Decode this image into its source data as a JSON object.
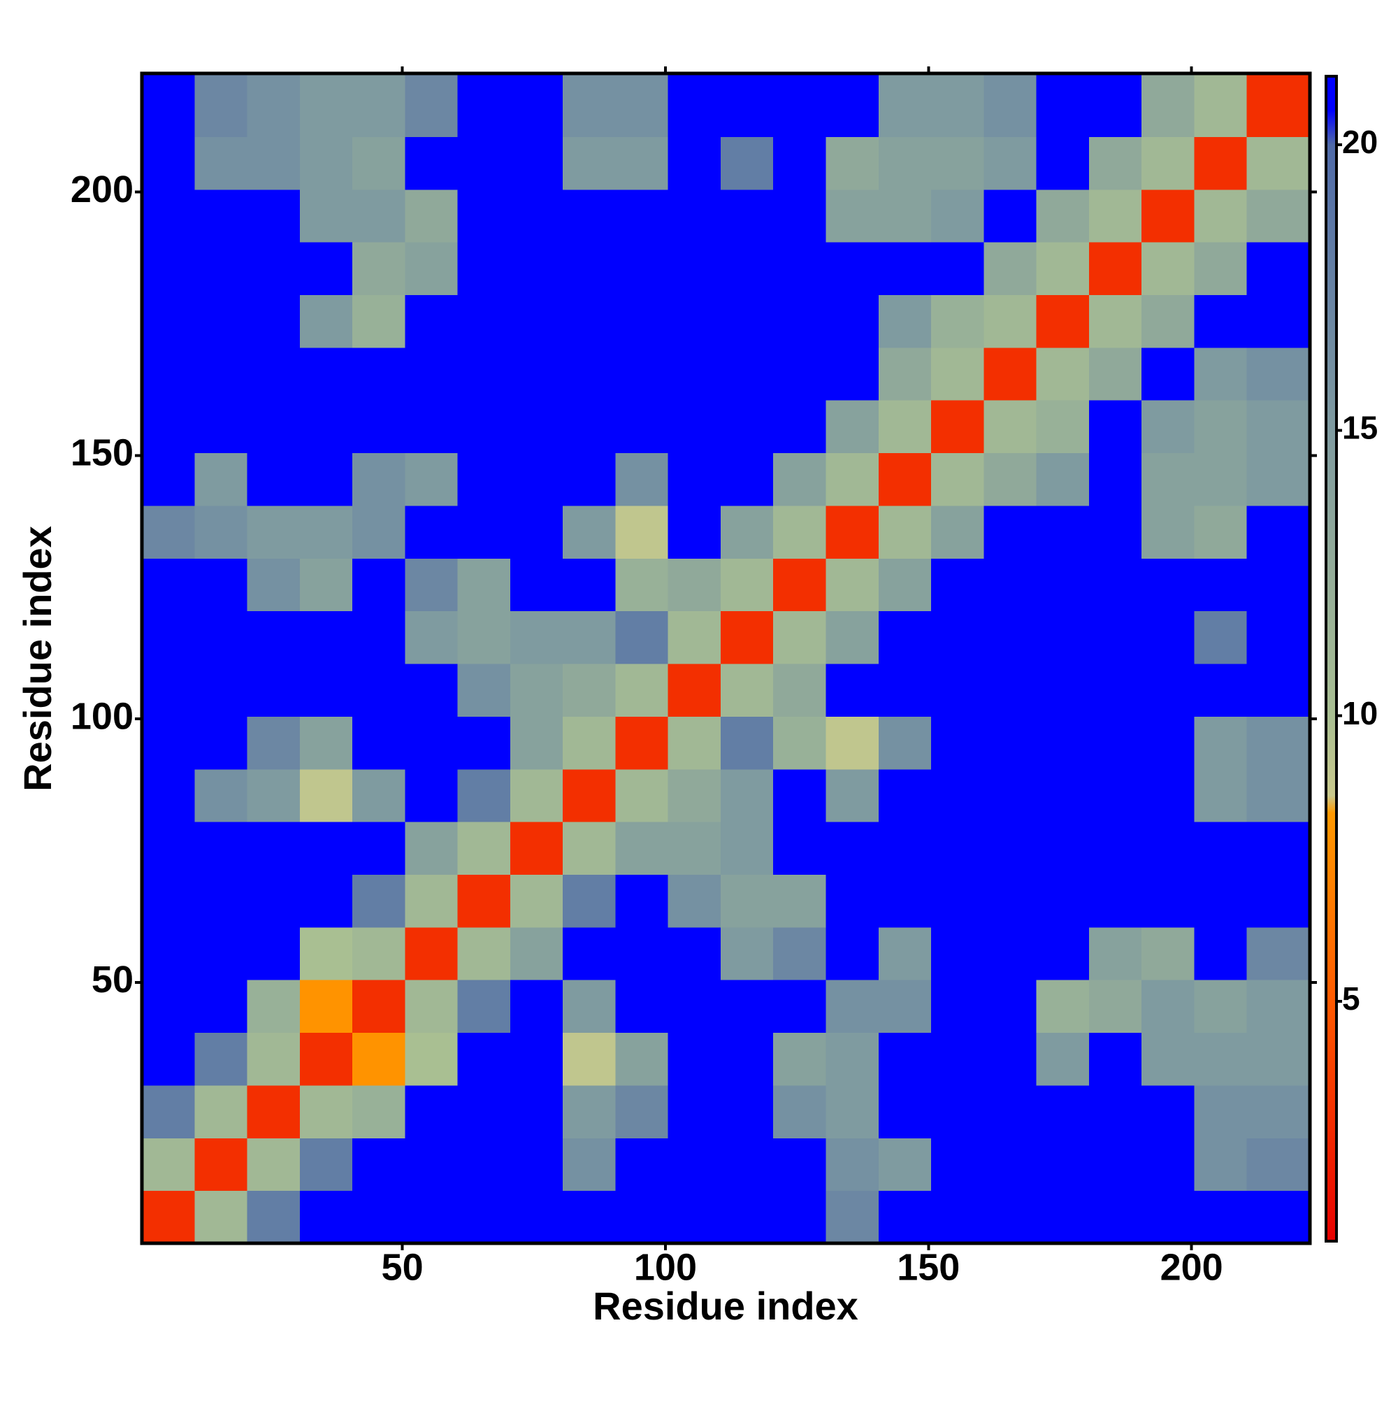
{
  "chart_data": {
    "type": "heatmap",
    "xlabel": "Residue index",
    "ylabel": "Residue index",
    "x_bins": [
      0.5,
      10.5,
      20.5,
      30.5,
      40.5,
      50.5,
      60.5,
      70.5,
      80.5,
      90.5,
      100.5,
      110.5,
      120.5,
      130.5,
      140.5,
      150.5,
      160.5,
      170.5,
      180.5,
      190.5,
      200.5,
      210.5,
      222.5
    ],
    "y_bins": [
      0.5,
      10.5,
      20.5,
      30.5,
      40.5,
      50.5,
      60.5,
      70.5,
      80.5,
      90.5,
      100.5,
      110.5,
      120.5,
      130.5,
      140.5,
      150.5,
      160.5,
      170.5,
      180.5,
      190.5,
      200.5,
      210.5,
      222.5
    ],
    "z": [
      [
        3,
        11,
        18,
        21,
        21,
        21,
        21,
        21,
        21,
        21,
        21,
        21,
        21,
        17,
        21,
        21,
        21,
        21,
        21,
        21,
        21,
        21
      ],
      [
        11,
        3,
        11,
        18,
        21,
        21,
        21,
        21,
        16,
        21,
        21,
        21,
        21,
        16,
        15,
        21,
        21,
        21,
        21,
        21,
        16,
        17
      ],
      [
        18,
        11,
        3,
        11,
        12,
        21,
        21,
        21,
        15,
        17,
        21,
        21,
        16,
        15,
        21,
        21,
        21,
        21,
        21,
        21,
        16,
        16
      ],
      [
        21,
        18,
        11,
        3,
        8,
        10,
        21,
        21,
        9,
        14,
        21,
        21,
        14,
        15,
        21,
        21,
        21,
        15,
        21,
        15,
        15,
        15
      ],
      [
        21,
        21,
        12,
        8,
        3,
        11,
        18,
        21,
        15,
        21,
        21,
        21,
        21,
        16,
        16,
        21,
        21,
        12,
        13,
        15,
        14,
        15
      ],
      [
        21,
        21,
        21,
        10,
        11,
        3,
        11,
        14,
        21,
        21,
        21,
        15,
        17,
        21,
        15,
        21,
        21,
        21,
        14,
        13,
        21,
        17
      ],
      [
        21,
        21,
        21,
        21,
        18,
        11,
        3,
        11,
        18,
        21,
        16,
        14,
        14,
        21,
        21,
        21,
        21,
        21,
        21,
        21,
        21,
        21
      ],
      [
        21,
        21,
        21,
        21,
        21,
        14,
        11,
        3,
        11,
        14,
        14,
        15,
        21,
        21,
        21,
        21,
        21,
        21,
        21,
        21,
        21,
        21
      ],
      [
        21,
        16,
        15,
        9,
        15,
        21,
        18,
        11,
        3,
        11,
        13,
        15,
        21,
        15,
        21,
        21,
        21,
        21,
        21,
        21,
        15,
        16
      ],
      [
        21,
        21,
        17,
        14,
        21,
        21,
        21,
        14,
        11,
        3,
        11,
        18,
        12,
        9,
        16,
        21,
        21,
        21,
        21,
        21,
        15,
        16
      ],
      [
        21,
        21,
        21,
        21,
        21,
        21,
        16,
        14,
        13,
        11,
        3,
        11,
        13,
        21,
        21,
        21,
        21,
        21,
        21,
        21,
        21,
        21
      ],
      [
        21,
        21,
        21,
        21,
        21,
        15,
        14,
        15,
        15,
        18,
        11,
        3,
        11,
        14,
        21,
        21,
        21,
        21,
        21,
        21,
        18,
        21
      ],
      [
        21,
        21,
        16,
        14,
        21,
        17,
        14,
        21,
        21,
        12,
        13,
        11,
        3,
        11,
        14,
        21,
        21,
        21,
        21,
        21,
        21,
        21
      ],
      [
        17,
        16,
        15,
        15,
        16,
        21,
        21,
        21,
        15,
        9,
        21,
        14,
        11,
        3,
        11,
        14,
        21,
        21,
        21,
        14,
        13,
        21
      ],
      [
        21,
        15,
        21,
        21,
        16,
        15,
        21,
        21,
        21,
        16,
        21,
        21,
        14,
        11,
        3,
        11,
        13,
        15,
        21,
        14,
        14,
        15
      ],
      [
        21,
        21,
        21,
        21,
        21,
        21,
        21,
        21,
        21,
        21,
        21,
        21,
        21,
        14,
        11,
        3,
        11,
        12,
        21,
        15,
        14,
        15
      ],
      [
        21,
        21,
        21,
        21,
        21,
        21,
        21,
        21,
        21,
        21,
        21,
        21,
        21,
        21,
        13,
        11,
        3,
        11,
        13,
        21,
        15,
        16
      ],
      [
        21,
        21,
        21,
        15,
        12,
        21,
        21,
        21,
        21,
        21,
        21,
        21,
        21,
        21,
        15,
        12,
        11,
        3,
        11,
        13,
        21,
        21
      ],
      [
        21,
        21,
        21,
        21,
        13,
        14,
        21,
        21,
        21,
        21,
        21,
        21,
        21,
        21,
        21,
        21,
        13,
        11,
        3,
        11,
        13,
        21
      ],
      [
        21,
        21,
        21,
        15,
        15,
        13,
        21,
        21,
        21,
        21,
        21,
        21,
        21,
        14,
        14,
        15,
        21,
        13,
        11,
        3,
        11,
        13
      ],
      [
        21,
        16,
        16,
        15,
        14,
        21,
        21,
        21,
        15,
        15,
        21,
        18,
        21,
        13,
        14,
        14,
        15,
        21,
        13,
        11,
        3,
        11
      ],
      [
        21,
        17,
        16,
        15,
        15,
        17,
        21,
        21,
        16,
        16,
        21,
        21,
        21,
        21,
        15,
        15,
        16,
        21,
        21,
        13,
        11,
        3
      ]
    ],
    "xlim": [
      0.5,
      222.5
    ],
    "ylim": [
      0.5,
      222.5
    ],
    "xticks": [
      50,
      100,
      150,
      200
    ],
    "yticks": [
      50,
      100,
      150,
      200
    ],
    "clim": [
      0.8,
      21.2
    ],
    "cticks": [
      5,
      10,
      15,
      20
    ],
    "colorscale": [
      [
        0.8,
        "#e60000"
      ],
      [
        5,
        "#ff5a00"
      ],
      [
        8.3,
        "#ff9900"
      ],
      [
        8.6,
        "#c9c98c"
      ],
      [
        10,
        "#a9bf92"
      ],
      [
        15,
        "#7f9ba0"
      ],
      [
        20,
        "#4f6aa8"
      ],
      [
        20.6,
        "#0000ff"
      ]
    ]
  }
}
